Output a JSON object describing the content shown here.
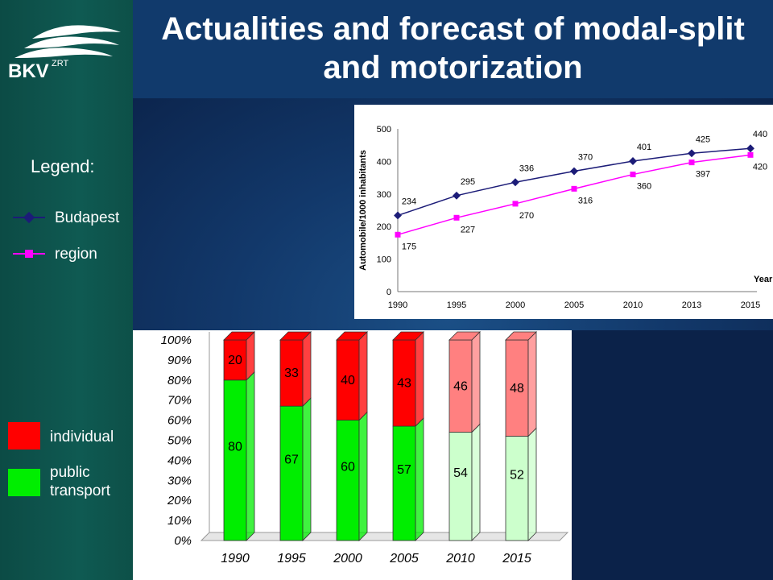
{
  "slide": {
    "title": "Actualities and forecast of modal-split and motorization",
    "logo_text": "BKV",
    "logo_superscript": "ZRT"
  },
  "legend_line": {
    "title": "Legend:",
    "budapest_label": "Budapest",
    "region_label": "region"
  },
  "legend_bar": {
    "individual_label": "individual",
    "public_label_line1": "public",
    "public_label_line2": "transport"
  },
  "colors": {
    "budapest_line": "#1c1c78",
    "region_line": "#ff00ff",
    "individual_bar": "#ff0000",
    "individual_bar_forecast": "#ff8080",
    "public_bar": "#00ee00",
    "public_bar_forecast": "#ccffcc"
  },
  "chart_data": [
    {
      "type": "line",
      "ylabel": "Automobile/1000 inhabitants",
      "xlabel": "Year",
      "categories": [
        "1990",
        "1995",
        "2000",
        "2005",
        "2010",
        "2013",
        "2015"
      ],
      "ylim": [
        0,
        500
      ],
      "yticks": [
        0,
        100,
        200,
        300,
        400,
        500
      ],
      "series": [
        {
          "name": "Budapest",
          "values": [
            234,
            295,
            336,
            370,
            401,
            425,
            440
          ]
        },
        {
          "name": "region",
          "values": [
            175,
            227,
            270,
            316,
            360,
            397,
            420
          ]
        }
      ]
    },
    {
      "type": "bar",
      "stacked": true,
      "categories": [
        "1990",
        "1995",
        "2000",
        "2005",
        "2010",
        "2015"
      ],
      "yticks": [
        "0%",
        "10%",
        "20%",
        "30%",
        "40%",
        "50%",
        "60%",
        "70%",
        "80%",
        "90%",
        "100%"
      ],
      "ylim": [
        0,
        100
      ],
      "series": [
        {
          "name": "public transport",
          "values": [
            80,
            67,
            60,
            57,
            54,
            52
          ]
        },
        {
          "name": "individual",
          "values": [
            20,
            33,
            40,
            43,
            46,
            48
          ]
        }
      ]
    }
  ]
}
